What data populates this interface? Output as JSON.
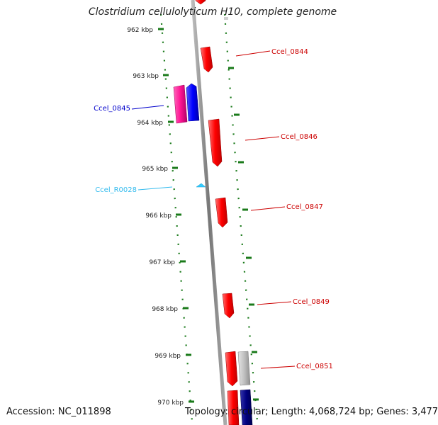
{
  "title": "Clostridium cellulolyticum H10, complete genome",
  "footer": {
    "accession": "Accession: NC_011898",
    "summary": "Topology: circular; Length: 4,068,724 bp; Genes: 3,477"
  },
  "ruler": {
    "unit": "kbp",
    "ticks": [
      "962 kbp",
      "963 kbp",
      "964 kbp",
      "965 kbp",
      "966 kbp",
      "967 kbp",
      "968 kbp",
      "969 kbp",
      "970 kbp"
    ]
  },
  "colors": {
    "forward_gene": "#ff0000",
    "forward_gene_alt": "#ff1493",
    "reverse_gene": "#0000ff",
    "reverse_gene_dark": "#000080",
    "pseudo_gene": "#c0c0c0",
    "rna_gene": "#33ccff",
    "ruler": "#1a7a1a",
    "backbone": "#888888",
    "label_red": "#cc0000",
    "label_blue": "#0000cc",
    "label_cyan": "#33bbee"
  },
  "genes": [
    {
      "id": "g0",
      "label": ""
    },
    {
      "id": "g1",
      "label": "Ccel_0844"
    },
    {
      "id": "g2",
      "label": ""
    },
    {
      "id": "g3",
      "label": "Ccel_0845"
    },
    {
      "id": "g4",
      "label": "Ccel_0846"
    },
    {
      "id": "g5",
      "label": "Ccel_R0028"
    },
    {
      "id": "g6",
      "label": "Ccel_0847"
    },
    {
      "id": "g7",
      "label": "Ccel_0849"
    },
    {
      "id": "g8",
      "label": "Ccel_0851"
    },
    {
      "id": "g9",
      "label": ""
    },
    {
      "id": "g10",
      "label": ""
    },
    {
      "id": "g11",
      "label": ""
    }
  ]
}
